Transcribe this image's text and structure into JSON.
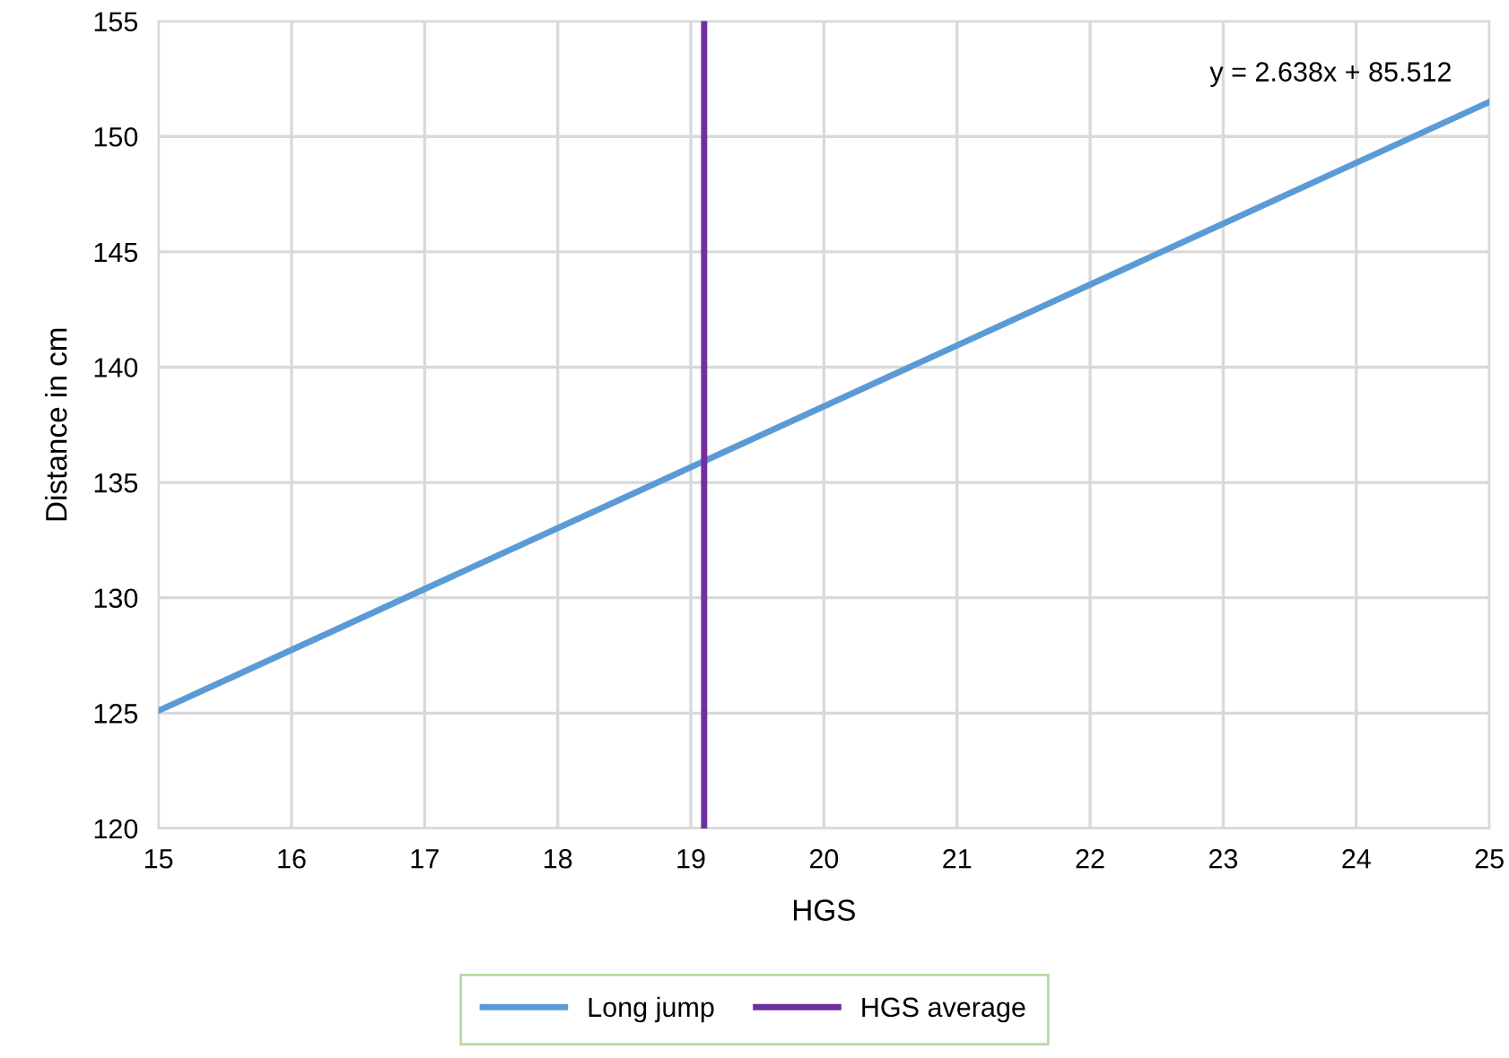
{
  "chart_data": {
    "type": "line",
    "xlabel": "HGS",
    "ylabel": "Distance in cm",
    "x": [
      15,
      25
    ],
    "series": [
      {
        "name": "Long jump",
        "color": "#5b9bd5",
        "values": [
          125.1,
          151.5
        ]
      }
    ],
    "ref_lines": [
      {
        "axis": "x",
        "value": 19.1,
        "label": "HGS average",
        "color": "#7030a0"
      }
    ],
    "annotations": [
      {
        "text": "y = 2.638x + 85.512",
        "x": 25,
        "y": 151.5
      }
    ],
    "xlim": [
      15,
      25
    ],
    "xticks": [
      15,
      16,
      17,
      18,
      19,
      20,
      21,
      22,
      23,
      24,
      25
    ],
    "ylim": [
      120,
      155
    ],
    "yticks": [
      120,
      125,
      130,
      135,
      140,
      145,
      150,
      155
    ],
    "grid": true,
    "legend": "bottom",
    "marker": "none",
    "line_style": "solid"
  }
}
